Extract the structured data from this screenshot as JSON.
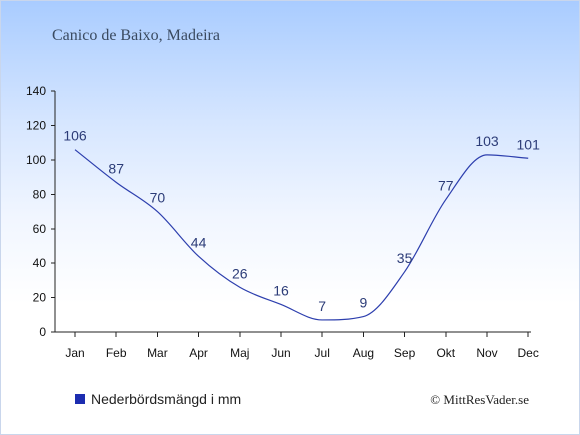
{
  "chart_data": {
    "type": "line",
    "title": "Canico de Baixo, Madeira",
    "categories": [
      "Jan",
      "Feb",
      "Mar",
      "Apr",
      "Maj",
      "Jun",
      "Jul",
      "Aug",
      "Sep",
      "Okt",
      "Nov",
      "Dec"
    ],
    "series": [
      {
        "name": "Nederbördsmängd i mm",
        "values": [
          106,
          87,
          70,
          44,
          26,
          16,
          7,
          9,
          35,
          77,
          103,
          101
        ],
        "color": "#2d3fae"
      }
    ],
    "ylim": [
      0,
      140
    ],
    "yticks": [
      0,
      20,
      40,
      60,
      80,
      100,
      120,
      140
    ],
    "grid": false,
    "legend_position": "bottom-left",
    "legend_swatch_color": "#1c2db0"
  },
  "credit": "© MittResVader.se"
}
